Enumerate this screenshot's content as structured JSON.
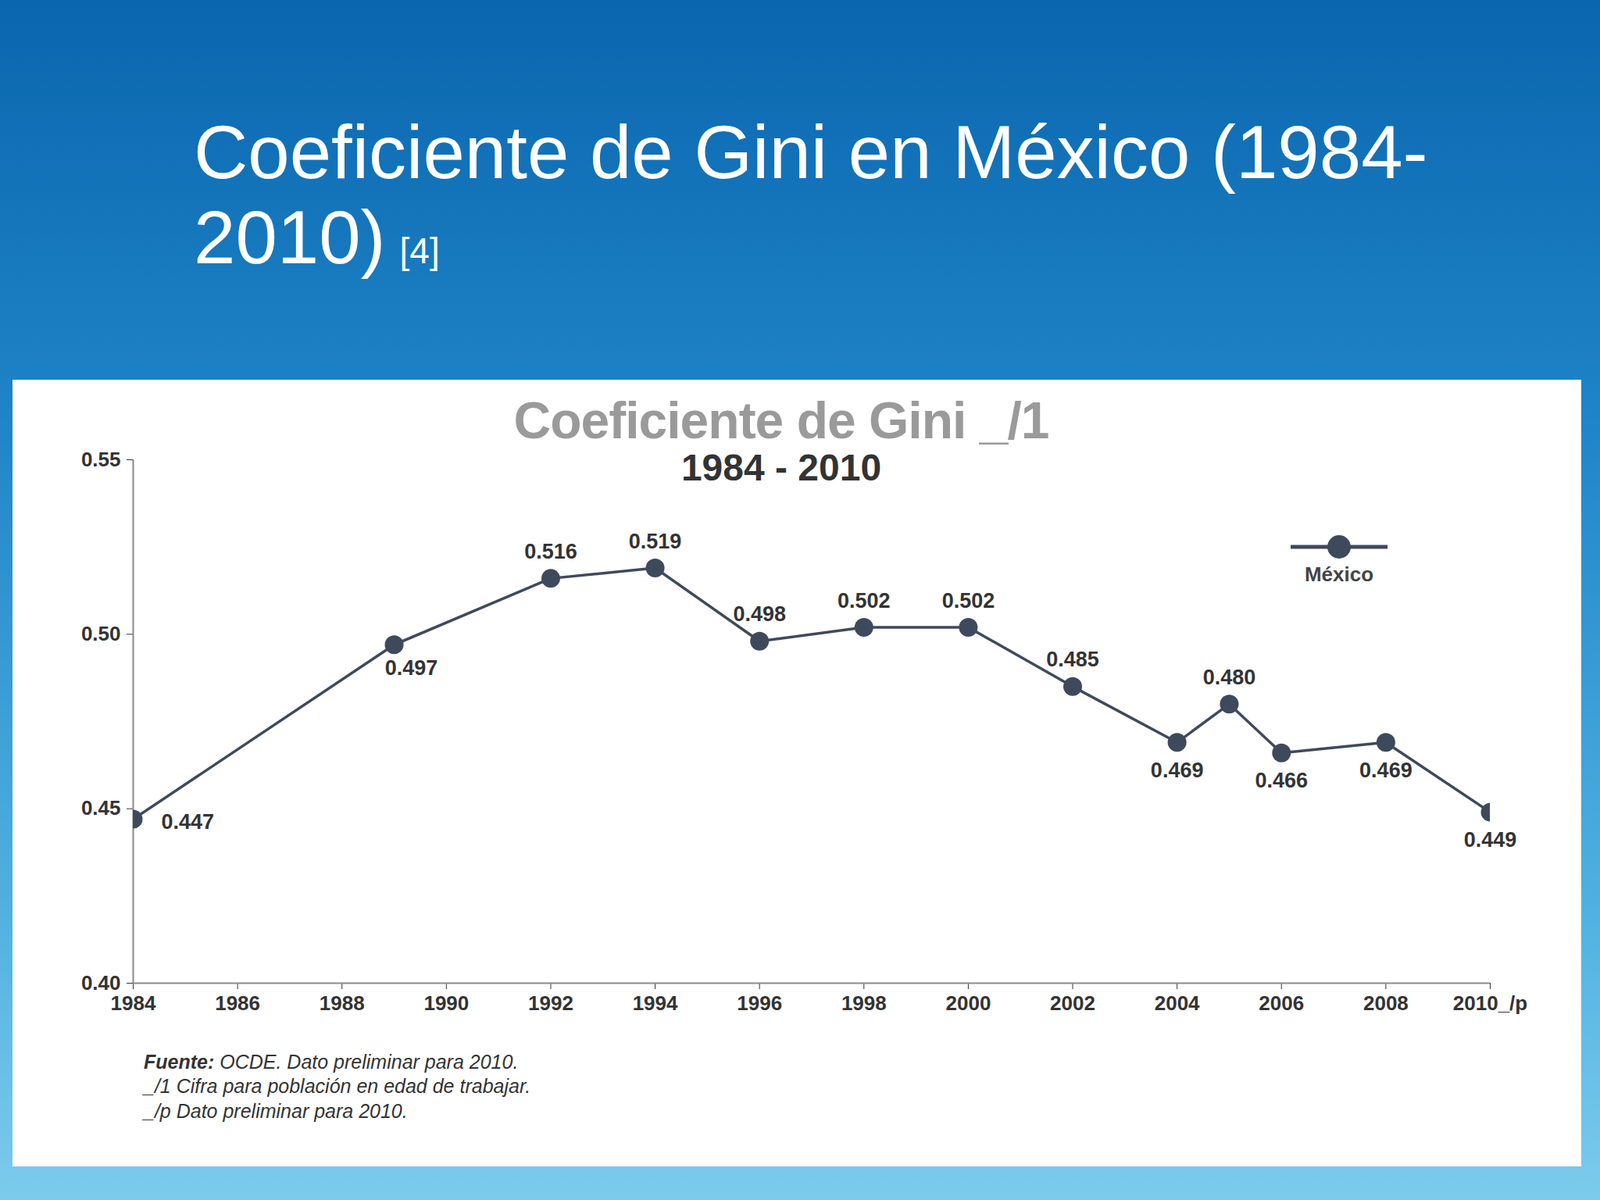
{
  "slide": {
    "title": "Coeficiente de Gini en México (1984-2010)",
    "reference": "[4]"
  },
  "chart_data": {
    "type": "line",
    "title": "Coeficiente de Gini _/1",
    "subtitle": "1984 - 2010",
    "x": [
      1984,
      1989,
      1992,
      1994,
      1996,
      1998,
      2000,
      2002,
      2004,
      2005,
      2006,
      2008,
      2010
    ],
    "series": [
      {
        "name": "México",
        "color": "#3e4a5c",
        "marker": "circle",
        "line_style": "solid",
        "values": [
          0.447,
          0.497,
          0.516,
          0.519,
          0.498,
          0.502,
          0.502,
          0.485,
          0.469,
          0.48,
          0.466,
          0.469,
          0.449
        ],
        "value_labels": [
          "0.447",
          "0.497",
          "0.516",
          "0.519",
          "0.498",
          "0.502",
          "0.502",
          "0.485",
          "0.469",
          "0.480",
          "0.466",
          "0.469",
          "0.449"
        ]
      }
    ],
    "xlim": [
      1984,
      2010
    ],
    "xticks": [
      1984,
      1986,
      1988,
      1990,
      1992,
      1994,
      1996,
      1998,
      2000,
      2002,
      2004,
      2006,
      2008,
      {
        "value": 2010,
        "label": "2010_/p"
      }
    ],
    "ylim": [
      0.4,
      0.55
    ],
    "yticks": [
      {
        "value": 0.4,
        "label": "0.40"
      },
      0.45,
      {
        "value": 0.5,
        "label": "0.50"
      },
      0.55
    ],
    "grid": false,
    "legend": "top-right",
    "data_labels": true,
    "source": {
      "label": "Fuente:",
      "text": "OCDE. Dato preliminar para 2010."
    },
    "notes": [
      "_/1 Cifra para población en edad de trabajar.",
      "_/p Dato preliminar para 2010."
    ]
  }
}
